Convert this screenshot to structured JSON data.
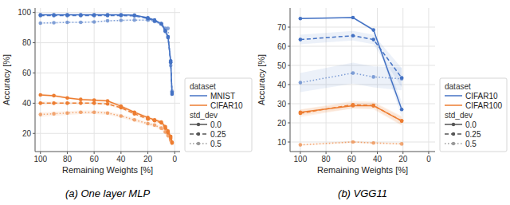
{
  "chart_data": [
    {
      "type": "line",
      "title": "(a) One layer MLP",
      "x_label": "Remaining Weights [%]",
      "y_label": "Accuracy [%]",
      "xlim": [
        104,
        -4
      ],
      "ylim": [
        8,
        103
      ],
      "xticks": [
        100,
        80,
        60,
        40,
        20,
        0
      ],
      "yticks": [
        20,
        40,
        60,
        80,
        100
      ],
      "grid": true,
      "legend": "right",
      "legend_titles": [
        "dataset",
        "std_dev"
      ],
      "series": [
        {
          "name": "MNIST",
          "std_dev": "0.0",
          "color": "#4472C4",
          "line_style": "solid",
          "marker": "circle",
          "x": [
            100,
            90,
            80,
            70,
            60,
            50,
            40,
            30,
            20,
            15,
            10,
            7,
            5,
            3,
            2
          ],
          "values": [
            98.5,
            98.5,
            98.5,
            98.5,
            98.5,
            98.5,
            98.5,
            98.2,
            96.5,
            95.0,
            92.5,
            88.0,
            84.0,
            68.0,
            46.0
          ],
          "errors": [
            0.2,
            0.2,
            0.2,
            0.2,
            0.2,
            0.2,
            0.2,
            0.3,
            0.5,
            0.7,
            1.0,
            1.5,
            1.5,
            3.0,
            4.0
          ]
        },
        {
          "name": "MNIST",
          "std_dev": "0.25",
          "color": "#4472C4",
          "line_style": "dashed",
          "marker": "circle",
          "x": [
            100,
            90,
            80,
            70,
            60,
            50,
            40,
            30,
            20,
            15,
            10,
            7,
            5,
            3,
            2
          ],
          "values": [
            98.0,
            98.0,
            98.0,
            98.0,
            98.0,
            98.0,
            98.0,
            97.8,
            96.0,
            94.5,
            92.5,
            87.5,
            83.5,
            67.0,
            47.0
          ],
          "errors": [
            0.3,
            0.3,
            0.3,
            0.3,
            0.3,
            0.3,
            0.3,
            0.4,
            0.6,
            0.8,
            1.2,
            1.8,
            2.0,
            3.5,
            5.0
          ]
        },
        {
          "name": "MNIST",
          "std_dev": "0.5",
          "color": "#4472C4",
          "line_style": "dotted",
          "marker": "circle",
          "x": [
            100,
            90,
            80,
            70,
            60,
            50,
            40,
            30,
            20,
            15,
            10,
            7,
            5,
            3,
            2
          ],
          "values": [
            93.0,
            93.2,
            93.5,
            93.5,
            93.8,
            94.5,
            94.8,
            95.0,
            95.0,
            94.0,
            92.5,
            89.5,
            89.5,
            65.0,
            48.0
          ],
          "errors": [
            0.5,
            0.5,
            0.5,
            0.5,
            0.5,
            0.5,
            0.5,
            0.5,
            0.5,
            0.7,
            0.9,
            1.0,
            1.2,
            4.0,
            5.0
          ]
        },
        {
          "name": "CIFAR10",
          "std_dev": "0.0",
          "color": "#ED7D31",
          "line_style": "solid",
          "marker": "circle",
          "x": [
            100,
            90,
            80,
            70,
            60,
            50,
            40,
            30,
            20,
            15,
            10,
            7,
            5,
            3,
            2
          ],
          "values": [
            45.5,
            45.0,
            43.5,
            42.5,
            42.0,
            41.5,
            38.0,
            34.0,
            30.5,
            29.0,
            27.5,
            24.5,
            21.5,
            18.0,
            14.0
          ],
          "errors": [
            1.0,
            0.9,
            0.8,
            0.8,
            0.8,
            0.8,
            0.9,
            1.0,
            1.0,
            1.0,
            1.2,
            1.3,
            1.5,
            1.5,
            1.5
          ]
        },
        {
          "name": "CIFAR10",
          "std_dev": "0.25",
          "color": "#ED7D31",
          "line_style": "dashed",
          "marker": "circle",
          "x": [
            100,
            90,
            80,
            70,
            60,
            50,
            40,
            30,
            20,
            15,
            10,
            7,
            5,
            3,
            2
          ],
          "values": [
            40.0,
            40.0,
            40.0,
            40.0,
            40.0,
            39.5,
            37.0,
            33.0,
            29.5,
            28.5,
            27.0,
            23.5,
            20.5,
            17.0,
            14.0
          ],
          "errors": [
            1.2,
            1.1,
            1.0,
            1.0,
            1.0,
            1.0,
            1.0,
            1.0,
            1.0,
            1.2,
            1.3,
            1.5,
            1.5,
            2.0,
            2.0
          ]
        },
        {
          "name": "CIFAR10",
          "std_dev": "0.5",
          "color": "#ED7D31",
          "line_style": "dotted",
          "marker": "circle",
          "x": [
            100,
            90,
            80,
            70,
            60,
            50,
            40,
            30,
            20,
            15,
            10,
            7,
            5,
            3,
            2
          ],
          "values": [
            32.5,
            33.0,
            33.5,
            34.0,
            34.0,
            33.5,
            31.5,
            29.0,
            26.5,
            25.5,
            23.5,
            21.0,
            18.5,
            15.5,
            13.5
          ],
          "errors": [
            1.5,
            1.4,
            1.3,
            1.2,
            1.2,
            1.2,
            1.2,
            1.2,
            1.2,
            1.3,
            1.5,
            1.8,
            2.0,
            2.0,
            2.0
          ]
        }
      ]
    },
    {
      "type": "line",
      "title": "(b) VGG11",
      "x_label": "Remaining Weights [%]",
      "y_label": "Accuracy [%]",
      "xlim": [
        108,
        -5
      ],
      "ylim": [
        5,
        80
      ],
      "xticks": [
        100,
        80,
        60,
        40,
        20,
        0
      ],
      "yticks": [
        10,
        20,
        30,
        40,
        50,
        60,
        70
      ],
      "grid": true,
      "legend": "right",
      "legend_titles": [
        "dataset",
        "std_dev"
      ],
      "series": [
        {
          "name": "CIFAR10",
          "std_dev": "0.0",
          "color": "#4472C4",
          "line_style": "solid",
          "marker": "circle",
          "x": [
            100,
            59,
            43,
            21
          ],
          "values": [
            74.5,
            75.0,
            68.5,
            27.0
          ],
          "errors": [
            0.3,
            0.3,
            0.8,
            4.0
          ]
        },
        {
          "name": "CIFAR10",
          "std_dev": "0.25",
          "color": "#4472C4",
          "line_style": "dashed",
          "marker": "circle",
          "x": [
            100,
            59,
            43,
            21
          ],
          "values": [
            63.5,
            65.5,
            63.5,
            43.5
          ],
          "errors": [
            2.5,
            2.5,
            2.5,
            5.0
          ]
        },
        {
          "name": "CIFAR10",
          "std_dev": "0.5",
          "color": "#4472C4",
          "line_style": "dotted",
          "marker": "circle",
          "x": [
            100,
            59,
            43,
            21
          ],
          "values": [
            41.0,
            46.0,
            44.0,
            43.0
          ],
          "errors": [
            5.0,
            5.5,
            5.5,
            6.0
          ]
        },
        {
          "name": "CIFAR100",
          "std_dev": "0.0",
          "color": "#ED7D31",
          "line_style": "solid",
          "marker": "circle",
          "x": [
            100,
            59,
            43,
            21
          ],
          "values": [
            25.5,
            29.0,
            29.0,
            21.0
          ],
          "errors": [
            1.5,
            1.5,
            1.5,
            2.0
          ]
        },
        {
          "name": "CIFAR100",
          "std_dev": "0.25",
          "color": "#ED7D31",
          "line_style": "dashed",
          "marker": "circle",
          "x": [
            100,
            59,
            43,
            21
          ],
          "values": [
            25.0,
            29.5,
            29.0,
            21.0
          ],
          "errors": [
            2.0,
            2.0,
            2.0,
            2.5
          ]
        },
        {
          "name": "CIFAR100",
          "std_dev": "0.5",
          "color": "#ED7D31",
          "line_style": "dotted",
          "marker": "circle",
          "x": [
            100,
            59,
            43,
            21
          ],
          "values": [
            8.5,
            10.0,
            9.5,
            9.0
          ],
          "errors": [
            0.5,
            0.5,
            0.5,
            0.5
          ]
        }
      ]
    }
  ]
}
